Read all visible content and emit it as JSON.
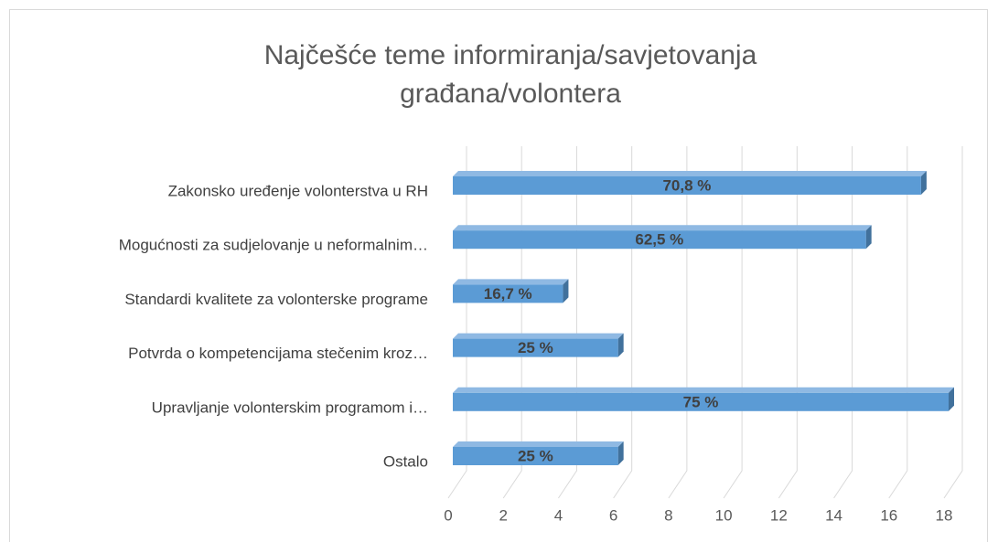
{
  "chart_data": {
    "type": "bar3d_horizontal",
    "title": [
      "Najčešće teme informiranja/savjetovanja",
      "građana/volontera"
    ],
    "categories": [
      "Zakonsko uređenje volonterstva u RH",
      "Mogućnosti za sudjelovanje u neformalnim…",
      "Standardi kvalitete za volonterske programe",
      "Potvrda o kompetencijama stečenim kroz…",
      "Upravljanje volonterskim programom i…",
      "Ostalo"
    ],
    "values": [
      17,
      15,
      4,
      6,
      18,
      6
    ],
    "value_labels": [
      "70,8 %",
      "62,5 %",
      "16,7 %",
      "25 %",
      "75 %",
      "25 %"
    ],
    "color": "#5b9bd5",
    "xlim": [
      0,
      18
    ],
    "xticks": [
      0,
      2,
      4,
      6,
      8,
      10,
      12,
      14,
      16,
      18
    ],
    "grid": true
  }
}
